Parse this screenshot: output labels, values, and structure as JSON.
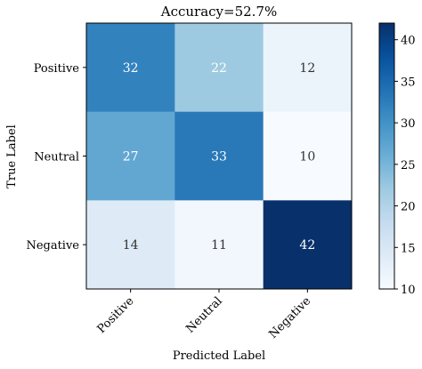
{
  "chart_data": {
    "type": "heatmap",
    "title": "Accuracy=52.7%",
    "xlabel": "Predicted Label",
    "ylabel": "True Label",
    "x_categories": [
      "Positive",
      "Neutral",
      "Negative"
    ],
    "y_categories": [
      "Positive",
      "Neutral",
      "Negative"
    ],
    "values": [
      [
        32,
        22,
        12
      ],
      [
        27,
        33,
        10
      ],
      [
        14,
        11,
        42
      ]
    ],
    "colormap": "Blues",
    "colorbar": {
      "min": 10,
      "max": 42,
      "ticks": [
        "10",
        "15",
        "20",
        "25",
        "30",
        "35",
        "40"
      ]
    },
    "grid": false
  }
}
